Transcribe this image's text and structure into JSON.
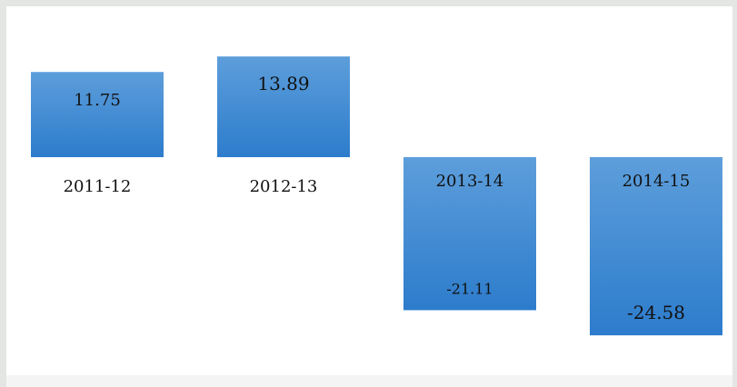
{
  "chart_data": {
    "type": "bar",
    "categories": [
      "2011-12",
      "2012-13",
      "2013-14",
      "2014-15"
    ],
    "values": [
      11.75,
      13.89,
      -21.11,
      -24.58
    ],
    "title": "",
    "xlabel": "",
    "ylabel": "",
    "ylim": [
      -24.58,
      13.89
    ],
    "grid": false,
    "legend": "none",
    "colors": {
      "bar_top": "#5d9edb",
      "bar_bottom": "#2d7ccc",
      "background": "#ffffff",
      "frame": "#e4e6e4"
    }
  }
}
